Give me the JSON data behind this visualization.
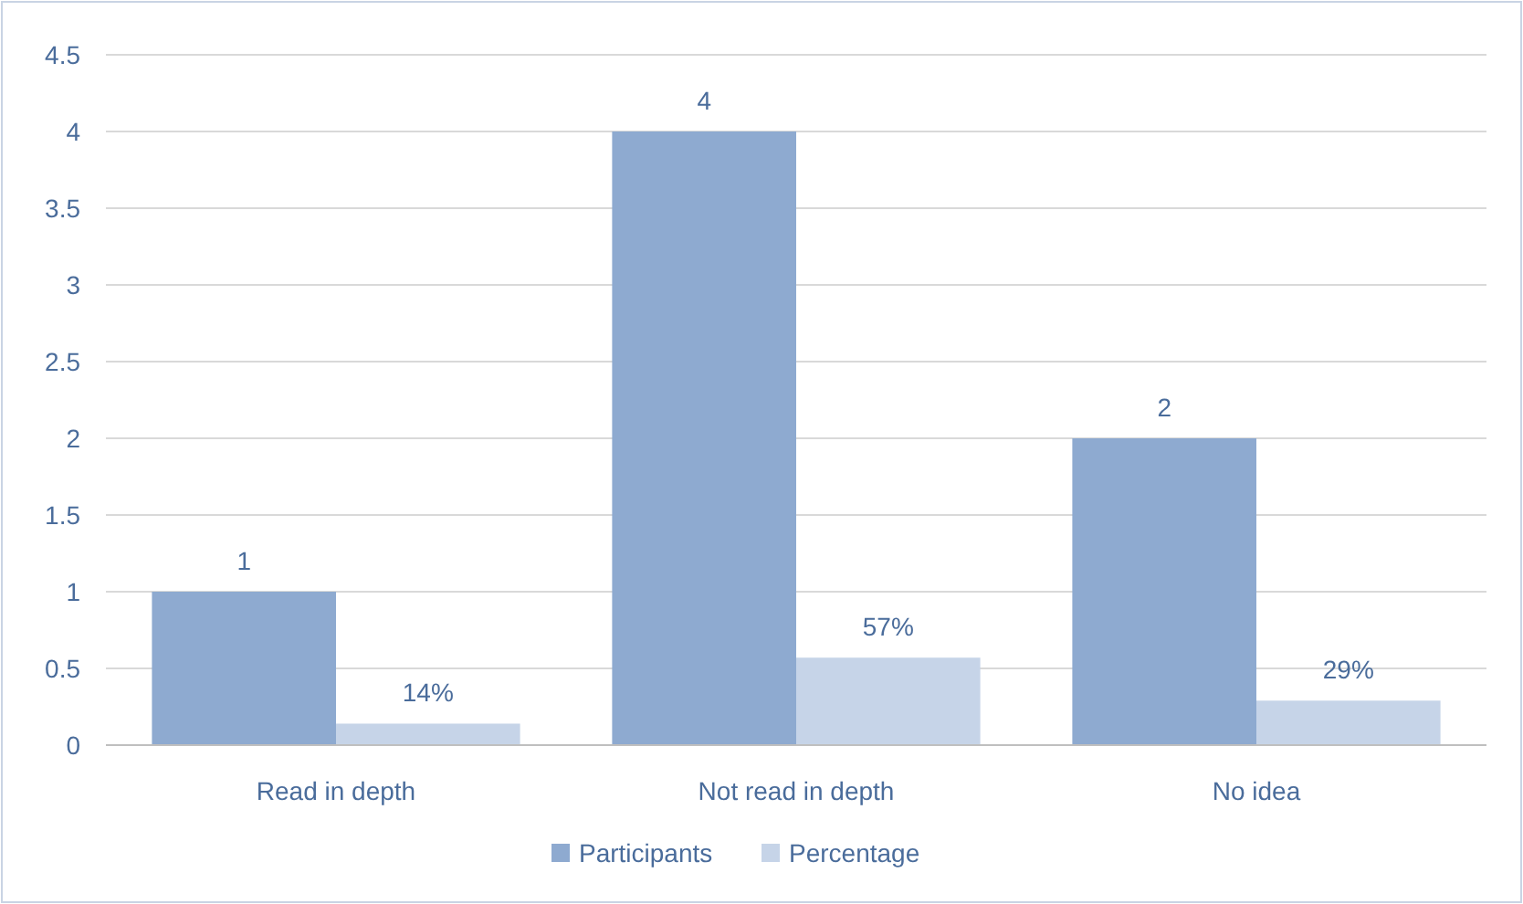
{
  "chart_data": {
    "type": "bar",
    "categories": [
      "Read in depth",
      "Not read in depth",
      "No idea"
    ],
    "series": [
      {
        "name": "Participants",
        "color": "#8eaad0",
        "values": [
          1,
          4,
          2
        ],
        "value_labels": [
          "1",
          "4",
          "2"
        ]
      },
      {
        "name": "Percentage",
        "color": "#c6d4e8",
        "values": [
          0.14,
          0.57,
          0.29
        ],
        "value_labels": [
          "14%",
          "57%",
          "29%"
        ]
      }
    ],
    "ylim": [
      0,
      4.5
    ],
    "yticks": [
      0,
      0.5,
      1,
      1.5,
      2,
      2.5,
      3,
      3.5,
      4,
      4.5
    ],
    "grid": "y",
    "legend": "bottom"
  }
}
